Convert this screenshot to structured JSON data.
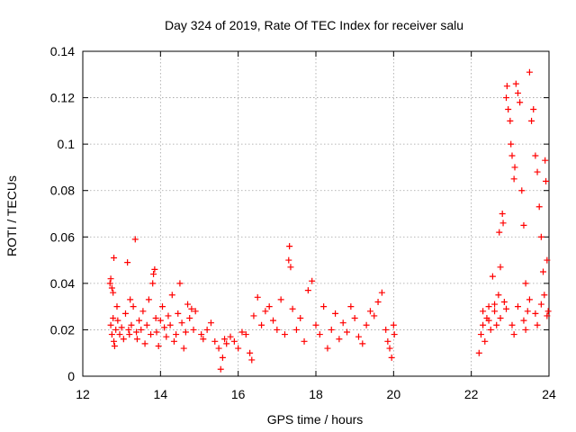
{
  "chart_data": {
    "type": "scatter",
    "title": "Day 324 of 2019, Rate Of TEC Index for receiver salu",
    "xlabel": "GPS time / hours",
    "ylabel": "ROTI / TECUs",
    "xlim": [
      12,
      24
    ],
    "ylim": [
      0,
      0.14
    ],
    "xticks": [
      12,
      14,
      16,
      18,
      20,
      22,
      24
    ],
    "xtick_labels": [
      "12",
      "14",
      "16",
      "18",
      "20",
      "22",
      "24"
    ],
    "yticks": [
      0,
      0.02,
      0.04,
      0.06,
      0.08,
      0.1,
      0.12,
      0.14
    ],
    "ytick_labels": [
      "0",
      "0.02",
      "0.04",
      "0.06",
      "0.08",
      "0.1",
      "0.12",
      "0.14"
    ],
    "grid": true,
    "marker": "+",
    "series": [
      {
        "name": "ROTI",
        "color": "#ff0000",
        "points": [
          [
            12.7,
            0.04
          ],
          [
            12.72,
            0.042
          ],
          [
            12.75,
            0.038
          ],
          [
            12.78,
            0.036
          ],
          [
            12.8,
            0.051
          ],
          [
            12.72,
            0.022
          ],
          [
            12.75,
            0.018
          ],
          [
            12.78,
            0.025
          ],
          [
            12.8,
            0.015
          ],
          [
            12.82,
            0.013
          ],
          [
            12.85,
            0.02
          ],
          [
            12.88,
            0.03
          ],
          [
            12.9,
            0.024
          ],
          [
            12.95,
            0.018
          ],
          [
            13.0,
            0.021
          ],
          [
            13.05,
            0.016
          ],
          [
            13.1,
            0.027
          ],
          [
            13.15,
            0.049
          ],
          [
            13.18,
            0.02
          ],
          [
            13.2,
            0.018
          ],
          [
            13.22,
            0.033
          ],
          [
            13.25,
            0.022
          ],
          [
            13.3,
            0.03
          ],
          [
            13.35,
            0.059
          ],
          [
            13.38,
            0.019
          ],
          [
            13.4,
            0.016
          ],
          [
            13.45,
            0.024
          ],
          [
            13.5,
            0.02
          ],
          [
            13.55,
            0.028
          ],
          [
            13.6,
            0.014
          ],
          [
            13.65,
            0.022
          ],
          [
            13.7,
            0.033
          ],
          [
            13.75,
            0.018
          ],
          [
            13.8,
            0.04
          ],
          [
            13.82,
            0.044
          ],
          [
            13.85,
            0.046
          ],
          [
            13.88,
            0.025
          ],
          [
            13.9,
            0.019
          ],
          [
            13.95,
            0.013
          ],
          [
            14.0,
            0.024
          ],
          [
            14.05,
            0.03
          ],
          [
            14.1,
            0.021
          ],
          [
            14.15,
            0.017
          ],
          [
            14.2,
            0.026
          ],
          [
            14.25,
            0.022
          ],
          [
            14.3,
            0.035
          ],
          [
            14.35,
            0.015
          ],
          [
            14.4,
            0.018
          ],
          [
            14.45,
            0.027
          ],
          [
            14.5,
            0.04
          ],
          [
            14.55,
            0.023
          ],
          [
            14.6,
            0.012
          ],
          [
            14.65,
            0.019
          ],
          [
            14.7,
            0.031
          ],
          [
            14.75,
            0.025
          ],
          [
            14.8,
            0.029
          ],
          [
            14.85,
            0.02
          ],
          [
            14.9,
            0.028
          ],
          [
            15.05,
            0.018
          ],
          [
            15.1,
            0.016
          ],
          [
            15.2,
            0.02
          ],
          [
            15.3,
            0.023
          ],
          [
            15.4,
            0.015
          ],
          [
            15.5,
            0.012
          ],
          [
            15.55,
            0.003
          ],
          [
            15.6,
            0.008
          ],
          [
            15.65,
            0.016
          ],
          [
            15.7,
            0.014
          ],
          [
            15.8,
            0.017
          ],
          [
            15.9,
            0.015
          ],
          [
            16.0,
            0.012
          ],
          [
            16.1,
            0.019
          ],
          [
            16.2,
            0.018
          ],
          [
            16.3,
            0.01
          ],
          [
            16.35,
            0.007
          ],
          [
            16.4,
            0.026
          ],
          [
            16.5,
            0.034
          ],
          [
            16.6,
            0.022
          ],
          [
            16.7,
            0.028
          ],
          [
            16.8,
            0.03
          ],
          [
            16.9,
            0.024
          ],
          [
            17.0,
            0.02
          ],
          [
            17.1,
            0.033
          ],
          [
            17.2,
            0.018
          ],
          [
            17.3,
            0.05
          ],
          [
            17.32,
            0.056
          ],
          [
            17.35,
            0.047
          ],
          [
            17.4,
            0.029
          ],
          [
            17.5,
            0.02
          ],
          [
            17.6,
            0.025
          ],
          [
            17.7,
            0.015
          ],
          [
            17.8,
            0.037
          ],
          [
            17.9,
            0.041
          ],
          [
            18.0,
            0.022
          ],
          [
            18.1,
            0.018
          ],
          [
            18.2,
            0.03
          ],
          [
            18.3,
            0.012
          ],
          [
            18.4,
            0.02
          ],
          [
            18.5,
            0.027
          ],
          [
            18.6,
            0.016
          ],
          [
            18.7,
            0.023
          ],
          [
            18.8,
            0.019
          ],
          [
            18.9,
            0.03
          ],
          [
            19.0,
            0.025
          ],
          [
            19.1,
            0.017
          ],
          [
            19.2,
            0.014
          ],
          [
            19.3,
            0.022
          ],
          [
            19.4,
            0.028
          ],
          [
            19.5,
            0.026
          ],
          [
            19.6,
            0.032
          ],
          [
            19.7,
            0.036
          ],
          [
            19.8,
            0.02
          ],
          [
            19.85,
            0.015
          ],
          [
            19.9,
            0.012
          ],
          [
            19.95,
            0.008
          ],
          [
            20.0,
            0.022
          ],
          [
            20.02,
            0.018
          ],
          [
            22.2,
            0.01
          ],
          [
            22.25,
            0.018
          ],
          [
            22.3,
            0.022
          ],
          [
            22.35,
            0.015
          ],
          [
            22.4,
            0.025
          ],
          [
            22.45,
            0.03
          ],
          [
            22.5,
            0.02
          ],
          [
            22.55,
            0.043
          ],
          [
            22.6,
            0.028
          ],
          [
            22.65,
            0.022
          ],
          [
            22.7,
            0.035
          ],
          [
            22.72,
            0.062
          ],
          [
            22.75,
            0.047
          ],
          [
            22.8,
            0.07
          ],
          [
            22.82,
            0.066
          ],
          [
            22.85,
            0.032
          ],
          [
            22.9,
            0.12
          ],
          [
            22.92,
            0.125
          ],
          [
            22.95,
            0.115
          ],
          [
            23.0,
            0.11
          ],
          [
            23.02,
            0.1
          ],
          [
            23.05,
            0.095
          ],
          [
            23.1,
            0.085
          ],
          [
            23.12,
            0.09
          ],
          [
            23.15,
            0.126
          ],
          [
            23.2,
            0.122
          ],
          [
            23.25,
            0.118
          ],
          [
            23.3,
            0.08
          ],
          [
            23.35,
            0.065
          ],
          [
            23.4,
            0.04
          ],
          [
            23.45,
            0.028
          ],
          [
            23.5,
            0.131
          ],
          [
            23.55,
            0.11
          ],
          [
            23.6,
            0.115
          ],
          [
            23.65,
            0.095
          ],
          [
            23.7,
            0.088
          ],
          [
            23.75,
            0.073
          ],
          [
            23.8,
            0.06
          ],
          [
            23.85,
            0.045
          ],
          [
            23.88,
            0.035
          ],
          [
            23.9,
            0.093
          ],
          [
            23.92,
            0.084
          ],
          [
            23.95,
            0.05
          ],
          [
            23.98,
            0.028
          ],
          [
            22.3,
            0.028
          ],
          [
            22.45,
            0.024
          ],
          [
            22.6,
            0.031
          ],
          [
            22.75,
            0.025
          ],
          [
            22.9,
            0.029
          ],
          [
            23.05,
            0.022
          ],
          [
            23.2,
            0.03
          ],
          [
            23.35,
            0.024
          ],
          [
            23.5,
            0.033
          ],
          [
            23.65,
            0.027
          ],
          [
            23.8,
            0.031
          ],
          [
            23.95,
            0.026
          ],
          [
            23.1,
            0.018
          ],
          [
            23.4,
            0.02
          ],
          [
            23.7,
            0.022
          ]
        ]
      }
    ]
  }
}
